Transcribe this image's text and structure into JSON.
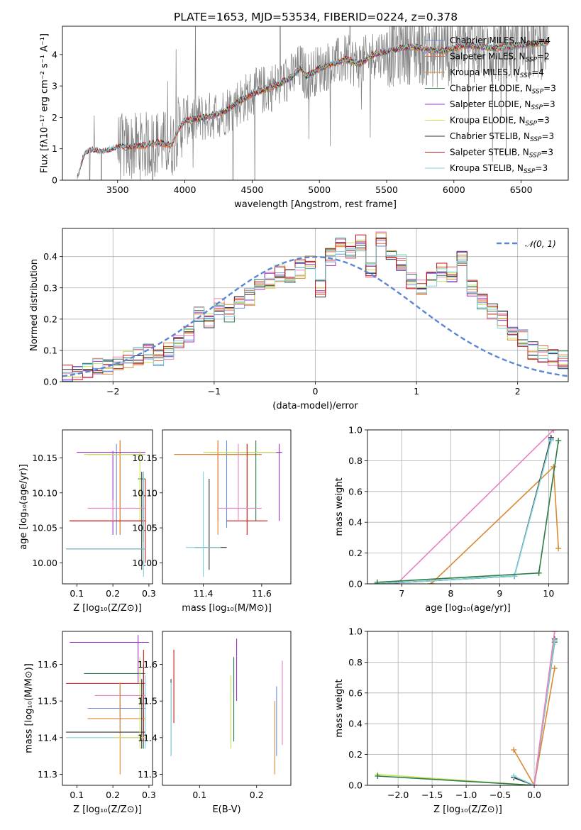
{
  "figure_title": "PLATE=1653, MJD=53534, FIBERID=0224, z=0.378",
  "colors": {
    "chabrier_miles": "#6b8fe0",
    "salpeter_miles": "#e36b4f",
    "kroupa_miles": "#d98a34",
    "chabrier_elodie": "#2e7d4f",
    "salpeter_elodie": "#9b30c2",
    "kroupa_elodie": "#c8e05c",
    "chabrier_stelib": "#333333",
    "salpeter_stelib": "#c21a1a",
    "kroupa_stelib": "#7fd3dd",
    "normal_curve": "#5b86d6",
    "observed_spectrum": "#808080",
    "extra_pink": "#ee7fc0"
  },
  "chart_data": [
    {
      "id": "spectrum",
      "type": "line",
      "title": "PLATE=1653, MJD=53534, FIBERID=0224, z=0.378",
      "xlabel": "wavelength [Angstrom, rest frame]",
      "ylabel": "Flux [fλ10⁻¹⁷ erg cm⁻² s⁻¹ A⁻¹]",
      "xlim": [
        3090,
        6850
      ],
      "ylim": [
        0,
        4.9
      ],
      "xticks": [
        3500,
        4000,
        4500,
        5000,
        5500,
        6000,
        6500
      ],
      "yticks": [
        0,
        1,
        2,
        3,
        4
      ],
      "legend": "top-right",
      "legend_entries": [
        {
          "key": "chabrier_miles",
          "label": "Chabrier MILES, N",
          "sub": "SSP",
          "suffix": "=4"
        },
        {
          "key": "salpeter_miles",
          "label": "Salpeter MILES, N",
          "sub": "SSP",
          "suffix": "=2"
        },
        {
          "key": "kroupa_miles",
          "label": "Kroupa MILES, N",
          "sub": "SSP",
          "suffix": "=4"
        },
        {
          "key": "chabrier_elodie",
          "label": "Chabrier ELODIE, N",
          "sub": "SSP",
          "suffix": "=3"
        },
        {
          "key": "salpeter_elodie",
          "label": "Salpeter ELODIE, N",
          "sub": "SSP",
          "suffix": "=3"
        },
        {
          "key": "kroupa_elodie",
          "label": "Kroupa ELODIE, N",
          "sub": "SSP",
          "suffix": "=3"
        },
        {
          "key": "chabrier_stelib",
          "label": "Chabrier STELIB, N",
          "sub": "SSP",
          "suffix": "=3"
        },
        {
          "key": "salpeter_stelib",
          "label": "Salpeter STELIB, N",
          "sub": "SSP",
          "suffix": "=3"
        },
        {
          "key": "kroupa_stelib",
          "label": "Kroupa STELIB, N",
          "sub": "SSP",
          "suffix": "=3"
        }
      ],
      "model_continuum": {
        "x": [
          3200,
          3250,
          3300,
          3400,
          3500,
          3600,
          3700,
          3800,
          3900,
          3950,
          4000,
          4100,
          4200,
          4300,
          4400,
          4500,
          4600,
          4700,
          4800,
          4860,
          4900,
          5000,
          5100,
          5200,
          5300,
          5400,
          5500,
          5600,
          5700,
          5800,
          5900,
          6000,
          6100,
          6200,
          6300,
          6400,
          6500,
          6600,
          6700
        ],
        "y": [
          0.05,
          0.8,
          0.95,
          0.9,
          1.05,
          1.05,
          1.1,
          1.2,
          1.1,
          1.6,
          1.9,
          1.95,
          2.05,
          2.2,
          2.5,
          2.75,
          2.9,
          3.05,
          3.3,
          3.6,
          3.3,
          3.55,
          3.7,
          3.85,
          3.7,
          4.0,
          4.1,
          4.2,
          4.25,
          4.15,
          4.1,
          4.2,
          4.3,
          4.25,
          4.2,
          4.25,
          4.3,
          4.35,
          4.4
        ]
      }
    },
    {
      "id": "residuals",
      "type": "line",
      "xlabel": "(data-model)/error",
      "ylabel": "Normed distribution",
      "xlim": [
        -2.5,
        2.5
      ],
      "ylim": [
        0,
        0.49
      ],
      "xticks": [
        -2,
        -1,
        0,
        1,
        2
      ],
      "yticks": [
        0.0,
        0.1,
        0.2,
        0.3,
        0.4
      ],
      "grid": true,
      "legend": "top-right",
      "normal_label": "𝒩(0, 1)",
      "bin_width": 0.1,
      "histogram": [
        0.025,
        0.03,
        0.04,
        0.045,
        0.05,
        0.06,
        0.07,
        0.08,
        0.09,
        0.075,
        0.1,
        0.12,
        0.15,
        0.21,
        0.2,
        0.24,
        0.22,
        0.26,
        0.27,
        0.3,
        0.32,
        0.35,
        0.33,
        0.36,
        0.38,
        0.3,
        0.4,
        0.43,
        0.42,
        0.44,
        0.36,
        0.45,
        0.4,
        0.38,
        0.32,
        0.3,
        0.33,
        0.35,
        0.34,
        0.4,
        0.3,
        0.25,
        0.22,
        0.2,
        0.16,
        0.14,
        0.1,
        0.09,
        0.08,
        0.07
      ]
    },
    {
      "id": "age_vs_Z",
      "type": "scatter",
      "xlabel": "Z [log₁₀(Z/Z⊙)]",
      "ylabel": "age  [log₁₀(age/yr)]",
      "xlim": [
        0.06,
        0.31
      ],
      "ylim": [
        9.97,
        10.19
      ],
      "xticks": [
        0.1,
        0.2,
        0.3
      ],
      "yticks": [
        10.0,
        10.05,
        10.1,
        10.15
      ],
      "points": [
        {
          "key": "chabrier_miles",
          "x": 0.21,
          "y": 10.155,
          "xerr": [
            0.13,
            0.29
          ],
          "yerr": [
            10.04,
            10.17
          ]
        },
        {
          "key": "salpeter_miles",
          "x": 0.22,
          "y": 10.06,
          "xerr": [
            0.08,
            0.29
          ],
          "yerr": [
            10.04,
            10.175
          ]
        },
        {
          "key": "kroupa_miles",
          "x": 0.22,
          "y": 10.155,
          "xerr": [
            0.13,
            0.29
          ],
          "yerr": [
            10.04,
            10.175
          ]
        },
        {
          "key": "chabrier_elodie",
          "x": 0.285,
          "y": 10.12,
          "xerr": [
            0.27,
            0.29
          ],
          "yerr": [
            10.03,
            10.13
          ]
        },
        {
          "key": "salpeter_elodie",
          "x": 0.2,
          "y": 10.158,
          "xerr": [
            0.1,
            0.29
          ],
          "yerr": [
            10.04,
            10.16
          ]
        },
        {
          "key": "kroupa_elodie",
          "x": 0.275,
          "y": 10.155,
          "xerr": [
            0.12,
            0.29
          ],
          "yerr": [
            10.06,
            10.16
          ]
        },
        {
          "key": "chabrier_stelib",
          "x": 0.28,
          "y": 10.02,
          "xerr": [
            0.07,
            0.29
          ],
          "yerr": [
            9.99,
            10.13
          ]
        },
        {
          "key": "salpeter_stelib",
          "x": 0.29,
          "y": 10.06,
          "xerr": [
            0.08,
            0.29
          ],
          "yerr": [
            10.0,
            10.12
          ]
        },
        {
          "key": "kroupa_stelib",
          "x": 0.285,
          "y": 10.02,
          "xerr": [
            0.07,
            0.29
          ],
          "yerr": [
            9.98,
            10.13
          ]
        },
        {
          "key": "extra_pink",
          "x": 0.2,
          "y": 10.078,
          "xerr": [
            0.13,
            0.29
          ],
          "yerr": [
            10.06,
            10.09
          ]
        }
      ]
    },
    {
      "id": "age_vs_mass",
      "type": "scatter",
      "xlabel": "mass [log₁₀(M/M⊙)]",
      "xlim": [
        11.26,
        11.7
      ],
      "ylim": [
        9.97,
        10.19
      ],
      "xticks": [
        11.4,
        11.6
      ],
      "yticks": [
        10.0,
        10.05,
        10.1,
        10.15
      ],
      "points": [
        {
          "key": "chabrier_miles",
          "x": 11.48,
          "y": 10.155,
          "xerr": [
            11.41,
            11.55
          ],
          "yerr": [
            10.05,
            10.175
          ]
        },
        {
          "key": "salpeter_miles",
          "x": 11.45,
          "y": 10.155,
          "xerr": [
            11.3,
            11.6
          ],
          "yerr": [
            10.06,
            10.175
          ]
        },
        {
          "key": "kroupa_miles",
          "x": 11.45,
          "y": 10.155,
          "xerr": [
            11.3,
            11.6
          ],
          "yerr": [
            10.04,
            10.175
          ]
        },
        {
          "key": "chabrier_elodie",
          "x": 11.58,
          "y": 10.158,
          "xerr": [
            11.42,
            11.66
          ],
          "yerr": [
            10.06,
            10.175
          ]
        },
        {
          "key": "salpeter_elodie",
          "x": 11.66,
          "y": 10.158,
          "xerr": [
            11.51,
            11.67
          ],
          "yerr": [
            10.06,
            10.17
          ]
        },
        {
          "key": "kroupa_elodie",
          "x": 11.55,
          "y": 10.158,
          "xerr": [
            11.4,
            11.65
          ],
          "yerr": [
            10.06,
            10.17
          ]
        },
        {
          "key": "chabrier_stelib",
          "x": 11.42,
          "y": 10.022,
          "xerr": [
            11.37,
            11.48
          ],
          "yerr": [
            9.99,
            10.12
          ]
        },
        {
          "key": "salpeter_stelib",
          "x": 11.55,
          "y": 10.06,
          "xerr": [
            11.48,
            11.62
          ],
          "yerr": [
            10.04,
            10.17
          ]
        },
        {
          "key": "kroupa_stelib",
          "x": 11.4,
          "y": 10.022,
          "xerr": [
            11.34,
            11.46
          ],
          "yerr": [
            9.98,
            10.13
          ]
        },
        {
          "key": "extra_pink",
          "x": 11.52,
          "y": 10.078,
          "xerr": [
            11.45,
            11.6
          ],
          "yerr": [
            10.06,
            10.17
          ]
        }
      ]
    },
    {
      "id": "weight_vs_age",
      "type": "line",
      "xlabel": "age  [log₁₀(age/yr)]",
      "ylabel": "mass weight",
      "xlim": [
        6.3,
        10.4
      ],
      "ylim": [
        0,
        1.0
      ],
      "xticks": [
        7,
        8,
        9,
        10
      ],
      "yticks": [
        0.0,
        0.2,
        0.4,
        0.6,
        0.8,
        1.0
      ],
      "grid": true,
      "series": [
        {
          "key": "extra_pink",
          "x": [
            6.9,
            10.1
          ],
          "y": [
            0.0,
            1.0
          ]
        },
        {
          "key": "kroupa_miles",
          "x": [
            7.6,
            10.1,
            10.2
          ],
          "y": [
            0.0,
            0.76,
            0.23
          ]
        },
        {
          "key": "chabrier_miles",
          "x": [
            6.5,
            9.3,
            10.05
          ],
          "y": [
            0.0,
            0.05,
            0.94
          ]
        },
        {
          "key": "chabrier_stelib",
          "x": [
            6.5,
            9.3,
            10.05
          ],
          "y": [
            0.0,
            0.05,
            0.95
          ]
        },
        {
          "key": "kroupa_stelib",
          "x": [
            6.5,
            9.3,
            10.05
          ],
          "y": [
            0.0,
            0.05,
            0.93
          ]
        },
        {
          "key": "kroupa_elodie",
          "x": [
            6.5,
            9.8,
            10.2
          ],
          "y": [
            0.01,
            0.07,
            0.93
          ]
        },
        {
          "key": "chabrier_elodie",
          "x": [
            6.5,
            9.8,
            10.2
          ],
          "y": [
            0.01,
            0.07,
            0.93
          ]
        }
      ]
    },
    {
      "id": "mass_vs_Z",
      "type": "scatter",
      "xlabel": "Z [log₁₀(Z/Z⊙)]",
      "ylabel": "mass [log₁₀(M/M⊙)]",
      "xlim": [
        0.06,
        0.31
      ],
      "ylim": [
        11.27,
        11.69
      ],
      "xticks": [
        0.1,
        0.2,
        0.3
      ],
      "yticks": [
        11.3,
        11.4,
        11.5,
        11.6
      ],
      "points": [
        {
          "key": "salpeter_elodie",
          "x": 0.27,
          "y": 11.66,
          "xerr": [
            0.08,
            0.3
          ],
          "yerr": [
            11.55,
            11.68
          ]
        },
        {
          "key": "chabrier_elodie",
          "x": 0.285,
          "y": 11.575,
          "xerr": [
            0.12,
            0.29
          ],
          "yerr": [
            11.37,
            11.6
          ]
        },
        {
          "key": "salpeter_stelib",
          "x": 0.285,
          "y": 11.548,
          "xerr": [
            0.07,
            0.29
          ],
          "yerr": [
            11.39,
            11.64
          ]
        },
        {
          "key": "extra_pink",
          "x": 0.22,
          "y": 11.515,
          "xerr": [
            0.15,
            0.29
          ],
          "yerr": [
            11.46,
            11.55
          ]
        },
        {
          "key": "chabrier_miles",
          "x": 0.22,
          "y": 11.48,
          "xerr": [
            0.13,
            0.29
          ],
          "yerr": [
            11.42,
            11.54
          ]
        },
        {
          "key": "kroupa_miles",
          "x": 0.22,
          "y": 11.452,
          "xerr": [
            0.13,
            0.29
          ],
          "yerr": [
            11.3,
            11.55
          ]
        },
        {
          "key": "chabrier_stelib",
          "x": 0.28,
          "y": 11.415,
          "xerr": [
            0.07,
            0.29
          ],
          "yerr": [
            11.37,
            11.56
          ]
        },
        {
          "key": "kroupa_stelib",
          "x": 0.29,
          "y": 11.4,
          "xerr": [
            0.07,
            0.29
          ],
          "yerr": [
            11.37,
            11.57
          ]
        },
        {
          "key": "kroupa_elodie",
          "x": 0.275,
          "y": 11.4,
          "xerr": [
            0.2,
            0.29
          ],
          "yerr": [
            11.37,
            11.62
          ]
        }
      ]
    },
    {
      "id": "mass_vs_ebv",
      "type": "scatter",
      "xlabel": "E(B-V)",
      "xlim": [
        0.035,
        0.26
      ],
      "ylim": [
        11.27,
        11.69
      ],
      "xticks": [
        0.1,
        0.2
      ],
      "yticks": [
        11.3,
        11.4,
        11.5,
        11.6
      ],
      "points": [
        {
          "key": "chabrier_stelib",
          "x": 0.05,
          "y": 11.45,
          "yerr": [
            11.35,
            11.56
          ]
        },
        {
          "key": "kroupa_stelib",
          "x": 0.05,
          "y": 11.45,
          "yerr": [
            11.35,
            11.55
          ]
        },
        {
          "key": "salpeter_stelib",
          "x": 0.055,
          "y": 11.54,
          "yerr": [
            11.44,
            11.64
          ]
        },
        {
          "key": "salpeter_elodie",
          "x": 0.165,
          "y": 11.58,
          "yerr": [
            11.5,
            11.67
          ]
        },
        {
          "key": "chabrier_elodie",
          "x": 0.16,
          "y": 11.52,
          "yerr": [
            11.39,
            11.62
          ]
        },
        {
          "key": "kroupa_elodie",
          "x": 0.155,
          "y": 11.47,
          "yerr": [
            11.37,
            11.57
          ]
        },
        {
          "key": "chabrier_miles",
          "x": 0.235,
          "y": 11.45,
          "yerr": [
            11.35,
            11.54
          ]
        },
        {
          "key": "kroupa_miles",
          "x": 0.232,
          "y": 11.4,
          "yerr": [
            11.3,
            11.5
          ]
        },
        {
          "key": "extra_pink",
          "x": 0.245,
          "y": 11.5,
          "yerr": [
            11.38,
            11.61
          ]
        }
      ]
    },
    {
      "id": "weight_vs_Z",
      "type": "line",
      "xlabel": "Z [log₁₀(Z/Z⊙)]",
      "ylabel": "mass weight",
      "xlim": [
        -2.45,
        0.5
      ],
      "ylim": [
        0,
        1.0
      ],
      "xticks": [
        -2.0,
        -1.5,
        -1.0,
        -0.5,
        0.0
      ],
      "yticks": [
        0.0,
        0.2,
        0.4,
        0.6,
        0.8,
        1.0
      ],
      "grid": true,
      "series": [
        {
          "key": "kroupa_elodie",
          "x": [
            -2.3,
            0.0,
            0.3
          ],
          "y": [
            0.07,
            0.0,
            0.93
          ]
        },
        {
          "key": "chabrier_elodie",
          "x": [
            -2.3,
            0.0,
            0.3
          ],
          "y": [
            0.06,
            0.0,
            0.93
          ]
        },
        {
          "key": "kroupa_miles",
          "x": [
            -0.3,
            0.0,
            0.3
          ],
          "y": [
            0.23,
            0.0,
            0.76
          ]
        },
        {
          "key": "chabrier_stelib",
          "x": [
            -0.3,
            0.0,
            0.3
          ],
          "y": [
            0.05,
            0.0,
            0.95
          ]
        },
        {
          "key": "kroupa_stelib",
          "x": [
            -0.3,
            0.0,
            0.3
          ],
          "y": [
            0.06,
            0.0,
            0.94
          ]
        },
        {
          "key": "extra_pink",
          "x": [
            0.0,
            0.3
          ],
          "y": [
            0.0,
            1.0
          ]
        }
      ]
    }
  ]
}
